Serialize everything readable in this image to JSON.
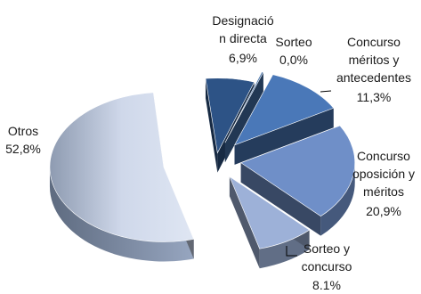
{
  "chart_data": {
    "type": "pie",
    "title": "",
    "legend": "none",
    "slices": [
      {
        "label_lines": [
          "Designació",
          "n directa"
        ],
        "value_text": "6,9%",
        "value": 6.9,
        "color": "#2d5386"
      },
      {
        "label_lines": [
          "Sorteo"
        ],
        "value_text": "0,0%",
        "value": 0.0,
        "color": "#4470a8"
      },
      {
        "label_lines": [
          "Concurso",
          "méritos y",
          "antecedentes"
        ],
        "value_text": "11,3%",
        "value": 11.3,
        "color": "#4a78b8"
      },
      {
        "label_lines": [
          "Concurso",
          "oposición y",
          "méritos"
        ],
        "value_text": "20,9%",
        "value": 20.9,
        "color": "#6f8fc8"
      },
      {
        "label_lines": [
          "Sorteo y",
          "concurso"
        ],
        "value_text": "8.1%",
        "value": 8.1,
        "color": "#9db1d8"
      },
      {
        "label_lines": [
          "Otros"
        ],
        "value_text": "52,8%",
        "value": 52.8,
        "color": "#c5d0e6"
      }
    ]
  }
}
